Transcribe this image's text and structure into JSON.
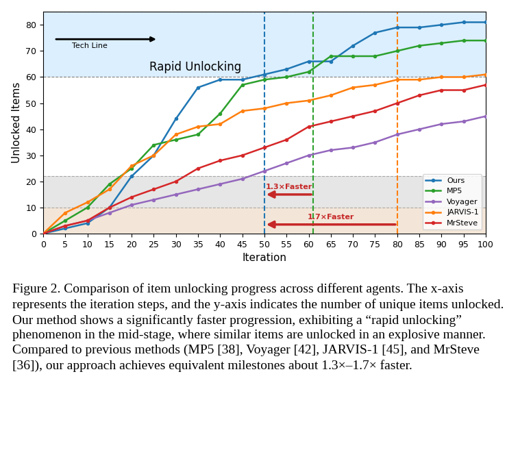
{
  "chart_data": {
    "type": "line",
    "x_label": "Iteration",
    "y_label": "Unlocked Items",
    "x": [
      0,
      5,
      10,
      15,
      20,
      25,
      30,
      35,
      40,
      45,
      50,
      55,
      60,
      65,
      70,
      75,
      80,
      85,
      90,
      95,
      100
    ],
    "series": [
      {
        "name": "Ours",
        "color": "#1f77b4",
        "marker": "o",
        "values": [
          0,
          2,
          4,
          10,
          22,
          30,
          44,
          56,
          59,
          59,
          61,
          63,
          66,
          66,
          72,
          77,
          79,
          79,
          80,
          81,
          81
        ]
      },
      {
        "name": "MP5",
        "color": "#2ca02c",
        "marker": "o",
        "values": [
          0,
          5,
          10,
          19,
          25,
          34,
          36,
          38,
          46,
          57,
          59,
          60,
          62,
          68,
          68,
          68,
          70,
          72,
          73,
          74,
          74
        ]
      },
      {
        "name": "Voyager",
        "color": "#9467bd",
        "marker": "o",
        "values": [
          0,
          3,
          5,
          8,
          11,
          13,
          15,
          17,
          19,
          21,
          24,
          27,
          30,
          32,
          33,
          35,
          38,
          40,
          42,
          43,
          45
        ]
      },
      {
        "name": "JARVIS-1",
        "color": "#ff7f0e",
        "marker": "o",
        "values": [
          0,
          8,
          12,
          17,
          26,
          30,
          38,
          41,
          42,
          47,
          48,
          50,
          51,
          53,
          56,
          57,
          59,
          59,
          60,
          60,
          61
        ]
      },
      {
        "name": "MrSteve",
        "color": "#d62728",
        "marker": "o",
        "values": [
          0,
          3,
          5,
          10,
          14,
          17,
          20,
          25,
          28,
          30,
          33,
          36,
          41,
          43,
          45,
          47,
          50,
          53,
          55,
          55,
          57
        ]
      }
    ],
    "xlim": [
      0,
      100
    ],
    "ylim": [
      0,
      85
    ],
    "xticks": [
      0,
      5,
      10,
      15,
      20,
      25,
      30,
      35,
      40,
      45,
      50,
      55,
      60,
      65,
      70,
      75,
      80,
      85,
      90,
      95,
      100
    ],
    "yticks": [
      0,
      10,
      20,
      30,
      40,
      50,
      60,
      70,
      80
    ],
    "grid": false,
    "legend": "lower right",
    "bands": [
      {
        "y": [
          0,
          10
        ],
        "color": "#f3e6d8"
      },
      {
        "y": [
          10,
          22
        ],
        "color": "#e6e6e6"
      },
      {
        "y": [
          60,
          85
        ],
        "color": "#dcefff"
      }
    ],
    "milestone_y": 60,
    "milestones": [
      {
        "x": 50,
        "color": "#1f77b4"
      },
      {
        "x": 61,
        "color": "#2ca02c"
      },
      {
        "x": 80,
        "color": "#ff7f0e"
      }
    ],
    "speedup_arrows": [
      {
        "x_from": 61,
        "x_to": 50,
        "y": 15,
        "label": "1.3×Faster"
      },
      {
        "x_from": 80,
        "x_to": 50,
        "y": 3.5,
        "label": "1.7×Faster"
      }
    ],
    "annotations": [
      {
        "text": "Rapid Unlocking",
        "x": 24,
        "y": 61.5
      },
      {
        "text": "Tech Line",
        "x": 10.5,
        "y": 72
      }
    ],
    "caption": "Figure 2. Comparison of item unlocking progress across different agents. The x-axis represents the iteration steps, and the y-axis indicates the number of unique items unlocked. Our method shows a significantly faster progression, exhibiting a “rapid unlocking” phenomenon in the mid-stage, where similar items are unlocked in an explosive manner. Compared to previous methods (MP5 [38], Voyager [42], JARVIS-1 [45], and MrSteve [36]), our approach achieves equivalent milestones about 1.3×–1.7× faster."
  }
}
